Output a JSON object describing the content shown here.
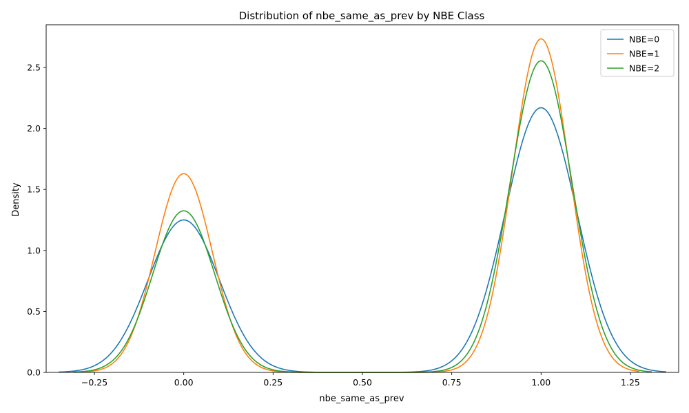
{
  "chart_data": {
    "type": "line",
    "title": "Distribution of nbe_same_as_prev by NBE Class",
    "xlabel": "nbe_same_as_prev",
    "ylabel": "Density",
    "xlim": [
      -0.385,
      1.385
    ],
    "ylim": [
      0,
      2.85
    ],
    "x_ticks": [
      -0.25,
      0.0,
      0.25,
      0.5,
      0.75,
      1.0,
      1.25
    ],
    "x_tick_labels": [
      "−0.25",
      "0.00",
      "0.25",
      "0.50",
      "0.75",
      "1.00",
      "1.25"
    ],
    "y_ticks": [
      0,
      0.5,
      1.0,
      1.5,
      2.0,
      2.5
    ],
    "y_tick_labels": [
      "0.0",
      "0.5",
      "1.0",
      "1.5",
      "2.0",
      "2.5"
    ],
    "legend_position": "top-right",
    "grid": false,
    "series": [
      {
        "name": "NBE=0",
        "color": "#1f77b4",
        "x_range": [
          -0.35,
          1.35
        ],
        "peaks": [
          {
            "x": 0.0,
            "density": 1.25
          },
          {
            "x": 1.0,
            "density": 2.17
          }
        ],
        "bandwidth": 0.1
      },
      {
        "name": "NBE=1",
        "color": "#ff7f0e",
        "x_range": [
          -0.275,
          1.275
        ],
        "peaks": [
          {
            "x": 0.0,
            "density": 1.63
          },
          {
            "x": 1.0,
            "density": 2.735
          }
        ],
        "bandwidth": 0.08
      },
      {
        "name": "NBE=2",
        "color": "#2ca02c",
        "x_range": [
          -0.31,
          1.31
        ],
        "peaks": [
          {
            "x": 0.0,
            "density": 1.325
          },
          {
            "x": 1.0,
            "density": 2.555
          }
        ],
        "bandwidth": 0.087
      }
    ]
  }
}
